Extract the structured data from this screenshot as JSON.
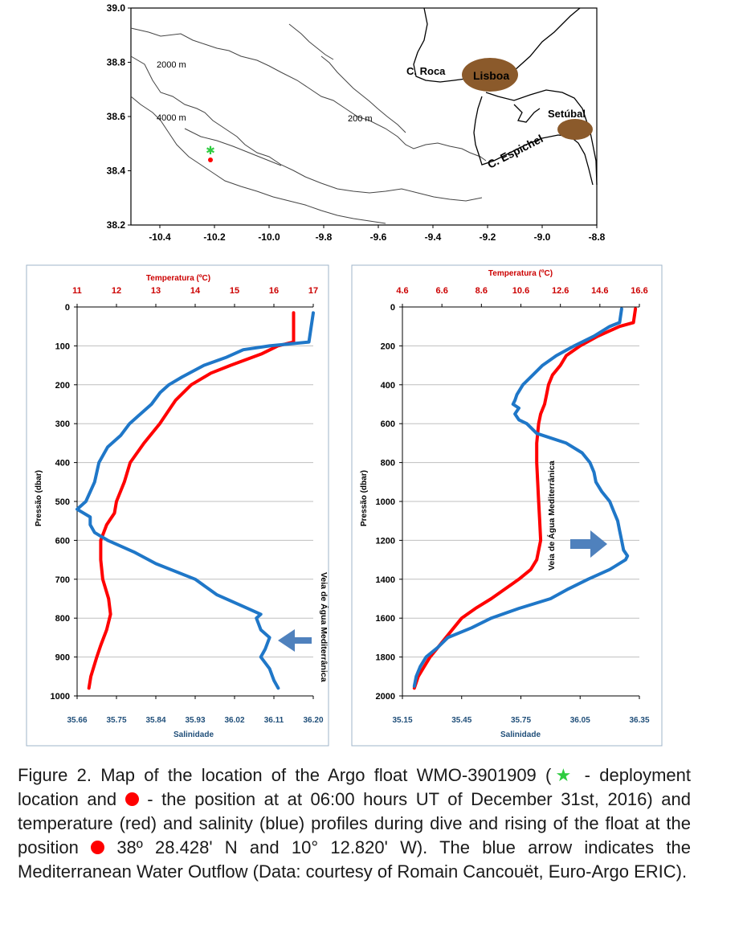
{
  "map": {
    "y_ticks": [
      "39.0",
      "38.8",
      "38.6",
      "38.4",
      "38.2"
    ],
    "x_ticks": [
      "-10.4",
      "-10.2",
      "-10.0",
      "-9.8",
      "-9.6",
      "-9.4",
      "-9.2",
      "-9.0",
      "-8.8"
    ],
    "contours": [
      "2000 m",
      "4000 m",
      "200 m"
    ],
    "places": [
      "C. Roca",
      "Lisboa",
      "Setúbal",
      "C. Espichel"
    ],
    "colors": {
      "city": "#8b5a2b",
      "deployment": "#2ecc40",
      "position": "#ff0000"
    }
  },
  "chart_data": [
    {
      "type": "line",
      "xlabel_top": "Temperatura (ºC)",
      "xlabel_bottom": "Salinidade",
      "ylabel": "Pressão (dbar)",
      "top_ticks": [
        "11",
        "12",
        "13",
        "14",
        "15",
        "16",
        "17"
      ],
      "bottom_ticks": [
        "35.66",
        "35.75",
        "35.84",
        "35.93",
        "36.02",
        "36.11",
        "36.20"
      ],
      "y_ticks": [
        "0",
        "100",
        "200",
        "300",
        "400",
        "500",
        "600",
        "700",
        "800",
        "900",
        "1000"
      ],
      "temp_range": [
        11,
        17
      ],
      "sal_range": [
        35.66,
        36.2
      ],
      "pres_range": [
        0,
        1000
      ],
      "annotation": "Veia de Água Mediterrânica",
      "series": [
        {
          "name": "Temperatura",
          "color": "#ff0000",
          "pressure": [
            15,
            90,
            100,
            120,
            150,
            170,
            200,
            240,
            300,
            350,
            400,
            450,
            500,
            530,
            560,
            600,
            650,
            700,
            750,
            790,
            830,
            870,
            900,
            950,
            980
          ],
          "values": [
            16.5,
            16.5,
            16.1,
            15.7,
            14.9,
            14.4,
            13.9,
            13.5,
            13.1,
            12.7,
            12.35,
            12.2,
            12.0,
            11.95,
            11.75,
            11.6,
            11.6,
            11.65,
            11.8,
            11.85,
            11.75,
            11.6,
            11.5,
            11.35,
            11.3
          ]
        },
        {
          "name": "Salinidade",
          "color": "#1f77c8",
          "pressure": [
            15,
            90,
            100,
            110,
            130,
            150,
            180,
            200,
            220,
            250,
            280,
            300,
            330,
            360,
            400,
            450,
            500,
            520,
            540,
            560,
            580,
            600,
            630,
            660,
            700,
            740,
            770,
            790,
            800,
            830,
            850,
            880,
            900,
            930,
            960,
            980
          ],
          "values": [
            36.2,
            36.19,
            36.1,
            36.04,
            36.0,
            35.95,
            35.9,
            35.87,
            35.85,
            35.83,
            35.8,
            35.78,
            35.76,
            35.73,
            35.71,
            35.7,
            35.68,
            35.66,
            35.69,
            35.69,
            35.7,
            35.73,
            35.79,
            35.84,
            35.93,
            35.98,
            36.04,
            36.08,
            36.07,
            36.08,
            36.1,
            36.09,
            36.08,
            36.1,
            36.11,
            36.12
          ]
        }
      ]
    },
    {
      "type": "line",
      "xlabel_top": "Temperatura (ºC)",
      "xlabel_bottom": "Salinidade",
      "ylabel": "Pressão (dbar)",
      "top_ticks": [
        "4.6",
        "6.6",
        "8.6",
        "10.6",
        "12.6",
        "14.6",
        "16.6"
      ],
      "bottom_ticks": [
        "35.15",
        "35.45",
        "35.75",
        "36.05",
        "36.35"
      ],
      "y_ticks": [
        "0",
        "200",
        "400",
        "600",
        "800",
        "1000",
        "1200",
        "1400",
        "1600",
        "1800",
        "2000"
      ],
      "temp_range": [
        4.6,
        16.6
      ],
      "sal_range": [
        35.15,
        36.35
      ],
      "pres_range": [
        0,
        2000
      ],
      "annotation": "Veia de Água Mediterrânica",
      "series": [
        {
          "name": "Temperatura",
          "color": "#ff0000",
          "pressure": [
            10,
            80,
            100,
            150,
            200,
            250,
            300,
            350,
            400,
            450,
            500,
            550,
            600,
            700,
            800,
            900,
            1000,
            1100,
            1200,
            1300,
            1350,
            1400,
            1450,
            1500,
            1550,
            1600,
            1650,
            1700,
            1750,
            1800,
            1850,
            1900,
            1960
          ],
          "values": [
            16.4,
            16.3,
            15.6,
            14.5,
            13.6,
            12.9,
            12.6,
            12.2,
            12.0,
            11.9,
            11.8,
            11.6,
            11.5,
            11.4,
            11.4,
            11.45,
            11.5,
            11.55,
            11.6,
            11.4,
            11.1,
            10.5,
            9.8,
            9.1,
            8.3,
            7.6,
            7.2,
            6.8,
            6.4,
            6.0,
            5.7,
            5.4,
            5.2
          ]
        },
        {
          "name": "Salinidade",
          "color": "#1f77c8",
          "pressure": [
            10,
            80,
            100,
            150,
            200,
            250,
            300,
            350,
            400,
            450,
            480,
            500,
            520,
            550,
            580,
            600,
            650,
            700,
            750,
            800,
            850,
            900,
            950,
            1000,
            1050,
            1100,
            1150,
            1200,
            1250,
            1280,
            1300,
            1350,
            1400,
            1450,
            1500,
            1550,
            1600,
            1650,
            1700,
            1750,
            1800,
            1850,
            1900,
            1950
          ],
          "values": [
            36.26,
            36.25,
            36.2,
            36.12,
            36.02,
            35.93,
            35.86,
            35.81,
            35.76,
            35.73,
            35.72,
            35.71,
            35.74,
            35.72,
            35.74,
            35.78,
            35.83,
            35.98,
            36.06,
            36.1,
            36.12,
            36.13,
            36.16,
            36.2,
            36.22,
            36.24,
            36.25,
            36.26,
            36.27,
            36.29,
            36.28,
            36.2,
            36.09,
            35.99,
            35.9,
            35.74,
            35.6,
            35.5,
            35.38,
            35.33,
            35.27,
            35.24,
            35.22,
            35.21
          ]
        }
      ]
    }
  ],
  "caption": {
    "p1": "Figure 2. Map of the location of the Argo float WMO-3901909 (",
    "star": "★",
    "p2": " - deployment location and ",
    "p3": " - the position at at 06:00 hours UT of December 31st, 2016) and temperature (red) and salinity (blue) profiles during dive and rising of the float at the position ",
    "p4": " 38º 28.428' N and 10° 12.820' W). The blue arrow indicates the Mediterranean Water Outflow (Data: courtesy of Romain Cancouët, Euro-Argo ERIC)."
  }
}
